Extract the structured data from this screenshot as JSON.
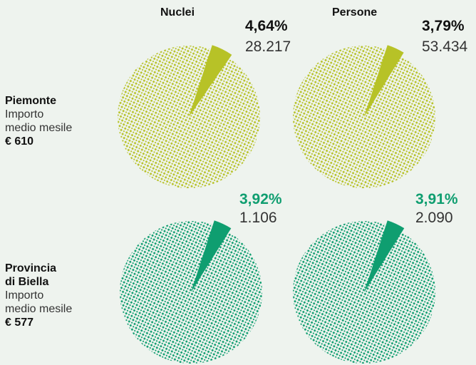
{
  "columns": {
    "left": "Nuclei",
    "right": "Persone"
  },
  "rows": [
    {
      "name_lines": [
        "Piemonte"
      ],
      "sublabel_lines": [
        "Importo",
        "medio mesile"
      ],
      "amount": "€ 610",
      "color": "#b7c227"
    },
    {
      "name_lines": [
        "Provincia",
        "di Biella"
      ],
      "sublabel_lines": [
        "Importo",
        "medio mesile"
      ],
      "amount": "€ 577",
      "color": "#0f9e70"
    }
  ],
  "chart_data": [
    {
      "type": "pie",
      "group": "Piemonte",
      "measure": "Nuclei",
      "percent_label": "4,64%",
      "count_label": "28.217",
      "share": 4.64
    },
    {
      "type": "pie",
      "group": "Piemonte",
      "measure": "Persone",
      "percent_label": "3,79%",
      "count_label": "53.434",
      "share": 3.79
    },
    {
      "type": "pie",
      "group": "Provincia di Biella",
      "measure": "Nuclei",
      "percent_label": "3,92%",
      "count_label": "1.106",
      "share": 3.92
    },
    {
      "type": "pie",
      "group": "Provincia di Biella",
      "measure": "Persone",
      "percent_label": "3,91%",
      "count_label": "2.090",
      "share": 3.91
    }
  ]
}
